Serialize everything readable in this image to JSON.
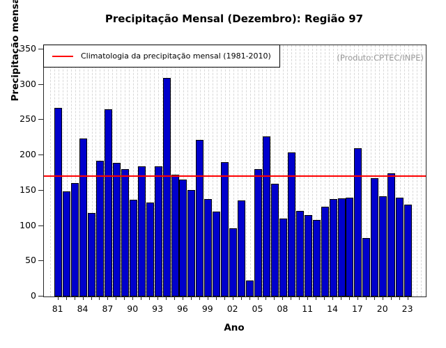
{
  "title": "Precipitação Mensal (Dezembro): Região 97",
  "legend": {
    "label": "Climatologia da precipitação mensal (1981-2010)",
    "line_color": "#ff0000"
  },
  "annotation": "(Produto:CPTEC/INPE)",
  "chart_data": {
    "type": "bar",
    "title": "Precipitação Mensal (Dezembro): Região 97",
    "xlabel": "Ano",
    "ylabel": "Precipitação mensal (mm)",
    "ylim": [
      0,
      350
    ],
    "y_ticks": [
      0,
      50,
      100,
      150,
      200,
      250,
      300,
      350
    ],
    "x_tick_labels": [
      "81",
      "84",
      "87",
      "90",
      "93",
      "96",
      "99",
      "02",
      "05",
      "08",
      "11",
      "14",
      "17",
      "20",
      "23"
    ],
    "x_tick_step_years": 3,
    "grid": "vertical-dashed",
    "legend_position": "top-left",
    "bar_color": "#0000CC",
    "bar_border_color": "#000000",
    "climatology_line_value": 170,
    "climatology_line_color": "#ff0000",
    "years": [
      1981,
      1982,
      1983,
      1984,
      1985,
      1986,
      1987,
      1988,
      1989,
      1990,
      1991,
      1992,
      1993,
      1994,
      1995,
      1996,
      1997,
      1998,
      1999,
      2000,
      2001,
      2002,
      2003,
      2004,
      2005,
      2006,
      2007,
      2008,
      2009,
      2010,
      2011,
      2012,
      2013,
      2014,
      2015,
      2016,
      2017,
      2018,
      2019,
      2020,
      2021,
      2022,
      2023
    ],
    "values": [
      267,
      149,
      161,
      224,
      118,
      192,
      265,
      189,
      180,
      137,
      184,
      133,
      184,
      309,
      172,
      166,
      151,
      222,
      138,
      120,
      190,
      97,
      136,
      23,
      180,
      227,
      160,
      110,
      204,
      121,
      115,
      108,
      127,
      138,
      139,
      140,
      210,
      83,
      168,
      142,
      174,
      140,
      130
    ]
  }
}
